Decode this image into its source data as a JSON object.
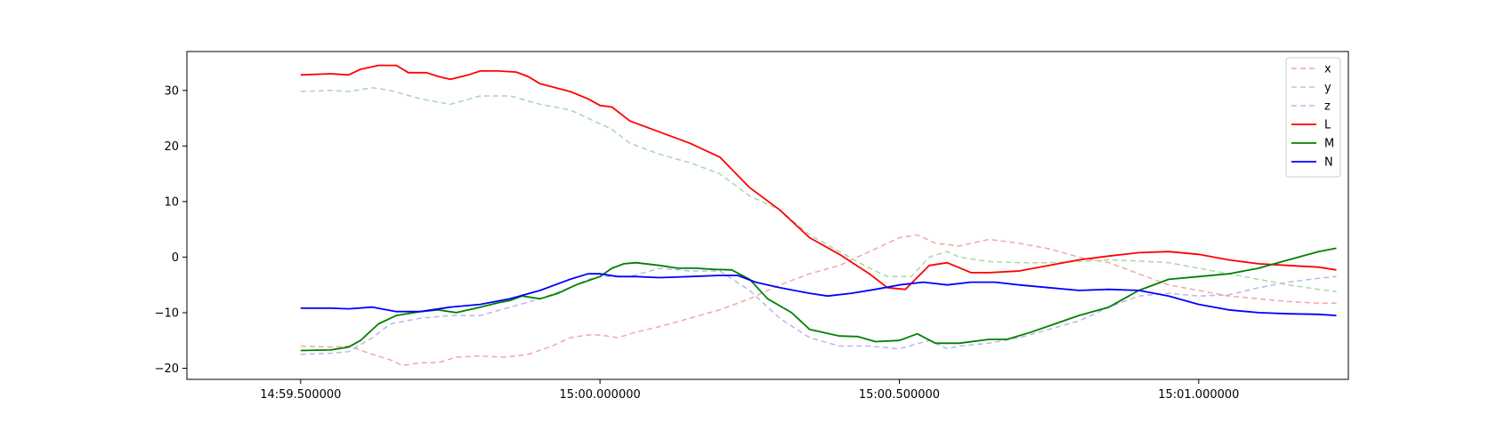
{
  "chart_data": {
    "type": "line",
    "title": "",
    "xlabel": "",
    "ylabel": "",
    "xlim": [
      -0.69,
      1.25
    ],
    "ylim": [
      -22,
      37
    ],
    "x_ticks": [
      {
        "value": -0.5,
        "label": "14:59.500000"
      },
      {
        "value": 0.0,
        "label": "15:00.000000"
      },
      {
        "value": 0.5,
        "label": "15:00.500000"
      },
      {
        "value": 1.0,
        "label": "15:01.000000"
      }
    ],
    "y_ticks": [
      {
        "value": -20,
        "label": "−20"
      },
      {
        "value": -10,
        "label": "−10"
      },
      {
        "value": 0,
        "label": "0"
      },
      {
        "value": 10,
        "label": "10"
      },
      {
        "value": 20,
        "label": "20"
      },
      {
        "value": 30,
        "label": "30"
      }
    ],
    "grid": false,
    "legend": {
      "position": "top-right"
    },
    "series": [
      {
        "name": "x",
        "color": "#f4a6a6",
        "dashed": true,
        "opacity": 0.6,
        "points": [
          [
            -0.5,
            -16
          ],
          [
            -0.45,
            -16.2
          ],
          [
            -0.42,
            -16
          ],
          [
            -0.38,
            -17.5
          ],
          [
            -0.35,
            -18.5
          ],
          [
            -0.33,
            -19.5
          ],
          [
            -0.3,
            -19
          ],
          [
            -0.27,
            -19
          ],
          [
            -0.24,
            -18
          ],
          [
            -0.2,
            -17.8
          ],
          [
            -0.16,
            -18
          ],
          [
            -0.12,
            -17.5
          ],
          [
            -0.08,
            -16
          ],
          [
            -0.05,
            -14.5
          ],
          [
            -0.02,
            -14
          ],
          [
            0.0,
            -14
          ],
          [
            0.03,
            -14.5
          ],
          [
            0.06,
            -13.5
          ],
          [
            0.1,
            -12.5
          ],
          [
            0.15,
            -11
          ],
          [
            0.2,
            -9.5
          ],
          [
            0.25,
            -7.5
          ],
          [
            0.3,
            -5
          ],
          [
            0.35,
            -3
          ],
          [
            0.4,
            -1.5
          ],
          [
            0.45,
            1
          ],
          [
            0.5,
            3.5
          ],
          [
            0.53,
            4
          ],
          [
            0.56,
            2.5
          ],
          [
            0.6,
            2
          ],
          [
            0.65,
            3.2
          ],
          [
            0.7,
            2.5
          ],
          [
            0.75,
            1.5
          ],
          [
            0.8,
            0
          ],
          [
            0.85,
            -1
          ],
          [
            0.9,
            -3
          ],
          [
            0.95,
            -5
          ],
          [
            1.0,
            -6
          ],
          [
            1.05,
            -7
          ],
          [
            1.1,
            -7.5
          ],
          [
            1.15,
            -8
          ],
          [
            1.2,
            -8.3
          ],
          [
            1.23,
            -8.3
          ]
        ]
      },
      {
        "name": "y",
        "color": "#a8d8a8",
        "dashed": true,
        "opacity": 0.6,
        "points": [
          [
            -0.5,
            29.8
          ],
          [
            -0.45,
            30
          ],
          [
            -0.42,
            29.8
          ],
          [
            -0.38,
            30.5
          ],
          [
            -0.35,
            30
          ],
          [
            -0.3,
            28.5
          ],
          [
            -0.25,
            27.5
          ],
          [
            -0.2,
            29
          ],
          [
            -0.15,
            29
          ],
          [
            -0.1,
            27.5
          ],
          [
            -0.05,
            26.5
          ],
          [
            0.0,
            24
          ],
          [
            0.02,
            23
          ],
          [
            0.05,
            20.5
          ],
          [
            0.1,
            18.5
          ],
          [
            0.15,
            17
          ],
          [
            0.2,
            15
          ],
          [
            0.25,
            11
          ],
          [
            0.3,
            8.5
          ],
          [
            0.35,
            4
          ],
          [
            0.4,
            1
          ],
          [
            0.45,
            -2
          ],
          [
            0.48,
            -3.5
          ],
          [
            0.52,
            -3.5
          ],
          [
            0.55,
            0
          ],
          [
            0.58,
            1
          ],
          [
            0.6,
            0
          ],
          [
            0.65,
            -0.8
          ],
          [
            0.7,
            -1
          ],
          [
            0.75,
            -1
          ],
          [
            0.8,
            -0.8
          ],
          [
            0.85,
            -0.5
          ],
          [
            0.9,
            -0.7
          ],
          [
            0.95,
            -1
          ],
          [
            1.0,
            -2
          ],
          [
            1.05,
            -3
          ],
          [
            1.1,
            -4
          ],
          [
            1.15,
            -5
          ],
          [
            1.2,
            -5.8
          ],
          [
            1.23,
            -6.2
          ]
        ]
      },
      {
        "name": "z",
        "color": "#b8b8ec",
        "dashed": true,
        "opacity": 0.6,
        "points": [
          [
            -0.5,
            -17.5
          ],
          [
            -0.45,
            -17.3
          ],
          [
            -0.42,
            -17
          ],
          [
            -0.38,
            -14.5
          ],
          [
            -0.35,
            -12
          ],
          [
            -0.3,
            -11
          ],
          [
            -0.25,
            -10.5
          ],
          [
            -0.2,
            -10.5
          ],
          [
            -0.15,
            -9
          ],
          [
            -0.1,
            -7.5
          ],
          [
            -0.05,
            -5.5
          ],
          [
            -0.02,
            -4
          ],
          [
            0.0,
            -3.5
          ],
          [
            0.05,
            -3.5
          ],
          [
            0.1,
            -2
          ],
          [
            0.15,
            -2.5
          ],
          [
            0.2,
            -2.5
          ],
          [
            0.25,
            -6
          ],
          [
            0.3,
            -11
          ],
          [
            0.35,
            -14.5
          ],
          [
            0.4,
            -16
          ],
          [
            0.45,
            -16
          ],
          [
            0.5,
            -16.5
          ],
          [
            0.55,
            -15
          ],
          [
            0.58,
            -16.5
          ],
          [
            0.6,
            -16
          ],
          [
            0.65,
            -15.5
          ],
          [
            0.7,
            -14.5
          ],
          [
            0.75,
            -13
          ],
          [
            0.8,
            -11.5
          ],
          [
            0.85,
            -9
          ],
          [
            0.9,
            -7
          ],
          [
            0.95,
            -6.5
          ],
          [
            1.0,
            -7
          ],
          [
            1.05,
            -6.8
          ],
          [
            1.1,
            -5.5
          ],
          [
            1.15,
            -4.5
          ],
          [
            1.2,
            -3.8
          ],
          [
            1.23,
            -3.5
          ]
        ]
      },
      {
        "name": "L",
        "color": "#ff0000",
        "dashed": false,
        "opacity": 1,
        "points": [
          [
            -0.5,
            32.8
          ],
          [
            -0.45,
            33
          ],
          [
            -0.42,
            32.8
          ],
          [
            -0.4,
            33.8
          ],
          [
            -0.37,
            34.5
          ],
          [
            -0.34,
            34.5
          ],
          [
            -0.32,
            33.2
          ],
          [
            -0.29,
            33.2
          ],
          [
            -0.27,
            32.5
          ],
          [
            -0.25,
            32
          ],
          [
            -0.22,
            32.8
          ],
          [
            -0.2,
            33.5
          ],
          [
            -0.17,
            33.5
          ],
          [
            -0.14,
            33.3
          ],
          [
            -0.12,
            32.5
          ],
          [
            -0.1,
            31.2
          ],
          [
            -0.05,
            29.8
          ],
          [
            -0.02,
            28.5
          ],
          [
            0.0,
            27.3
          ],
          [
            0.02,
            27
          ],
          [
            0.05,
            24.5
          ],
          [
            0.1,
            22.5
          ],
          [
            0.15,
            20.5
          ],
          [
            0.2,
            18
          ],
          [
            0.25,
            12.5
          ],
          [
            0.3,
            8.5
          ],
          [
            0.35,
            3.5
          ],
          [
            0.4,
            0.5
          ],
          [
            0.45,
            -3
          ],
          [
            0.48,
            -5.5
          ],
          [
            0.51,
            -5.8
          ],
          [
            0.55,
            -1.5
          ],
          [
            0.58,
            -1
          ],
          [
            0.62,
            -2.8
          ],
          [
            0.65,
            -2.8
          ],
          [
            0.7,
            -2.5
          ],
          [
            0.75,
            -1.5
          ],
          [
            0.8,
            -0.5
          ],
          [
            0.85,
            0.2
          ],
          [
            0.9,
            0.8
          ],
          [
            0.95,
            1
          ],
          [
            1.0,
            0.5
          ],
          [
            1.05,
            -0.5
          ],
          [
            1.1,
            -1.2
          ],
          [
            1.15,
            -1.5
          ],
          [
            1.2,
            -1.8
          ],
          [
            1.23,
            -2.3
          ]
        ]
      },
      {
        "name": "M",
        "color": "#008000",
        "dashed": false,
        "opacity": 1,
        "points": [
          [
            -0.5,
            -16.8
          ],
          [
            -0.45,
            -16.7
          ],
          [
            -0.42,
            -16.2
          ],
          [
            -0.4,
            -15
          ],
          [
            -0.37,
            -12
          ],
          [
            -0.34,
            -10.5
          ],
          [
            -0.3,
            -9.8
          ],
          [
            -0.27,
            -9.5
          ],
          [
            -0.24,
            -10
          ],
          [
            -0.2,
            -9
          ],
          [
            -0.17,
            -8.2
          ],
          [
            -0.15,
            -7.8
          ],
          [
            -0.13,
            -7
          ],
          [
            -0.1,
            -7.5
          ],
          [
            -0.07,
            -6.5
          ],
          [
            -0.04,
            -5
          ],
          [
            0.0,
            -3.5
          ],
          [
            0.02,
            -2
          ],
          [
            0.04,
            -1.2
          ],
          [
            0.06,
            -1
          ],
          [
            0.1,
            -1.5
          ],
          [
            0.13,
            -2
          ],
          [
            0.16,
            -2
          ],
          [
            0.19,
            -2.2
          ],
          [
            0.22,
            -2.3
          ],
          [
            0.25,
            -4
          ],
          [
            0.28,
            -7.5
          ],
          [
            0.32,
            -10
          ],
          [
            0.35,
            -13
          ],
          [
            0.4,
            -14.2
          ],
          [
            0.43,
            -14.3
          ],
          [
            0.46,
            -15.2
          ],
          [
            0.5,
            -15
          ],
          [
            0.53,
            -13.8
          ],
          [
            0.56,
            -15.5
          ],
          [
            0.6,
            -15.5
          ],
          [
            0.65,
            -14.8
          ],
          [
            0.68,
            -14.8
          ],
          [
            0.72,
            -13.5
          ],
          [
            0.76,
            -12
          ],
          [
            0.8,
            -10.5
          ],
          [
            0.85,
            -9
          ],
          [
            0.9,
            -6
          ],
          [
            0.95,
            -4
          ],
          [
            1.0,
            -3.5
          ],
          [
            1.05,
            -3
          ],
          [
            1.1,
            -2
          ],
          [
            1.15,
            -0.5
          ],
          [
            1.2,
            1
          ],
          [
            1.23,
            1.6
          ]
        ]
      },
      {
        "name": "N",
        "color": "#0000ff",
        "dashed": false,
        "opacity": 1,
        "points": [
          [
            -0.5,
            -9.2
          ],
          [
            -0.45,
            -9.2
          ],
          [
            -0.42,
            -9.3
          ],
          [
            -0.38,
            -9
          ],
          [
            -0.34,
            -9.8
          ],
          [
            -0.3,
            -9.8
          ],
          [
            -0.25,
            -9
          ],
          [
            -0.2,
            -8.5
          ],
          [
            -0.15,
            -7.5
          ],
          [
            -0.1,
            -6
          ],
          [
            -0.05,
            -4
          ],
          [
            -0.02,
            -3
          ],
          [
            0.0,
            -3
          ],
          [
            0.03,
            -3.5
          ],
          [
            0.06,
            -3.5
          ],
          [
            0.1,
            -3.7
          ],
          [
            0.15,
            -3.5
          ],
          [
            0.2,
            -3.3
          ],
          [
            0.23,
            -3.3
          ],
          [
            0.26,
            -4.5
          ],
          [
            0.3,
            -5.5
          ],
          [
            0.35,
            -6.5
          ],
          [
            0.38,
            -7
          ],
          [
            0.42,
            -6.5
          ],
          [
            0.46,
            -5.8
          ],
          [
            0.5,
            -5
          ],
          [
            0.54,
            -4.5
          ],
          [
            0.58,
            -5
          ],
          [
            0.62,
            -4.5
          ],
          [
            0.66,
            -4.5
          ],
          [
            0.7,
            -5
          ],
          [
            0.75,
            -5.5
          ],
          [
            0.8,
            -6
          ],
          [
            0.85,
            -5.8
          ],
          [
            0.9,
            -6
          ],
          [
            0.95,
            -7
          ],
          [
            1.0,
            -8.5
          ],
          [
            1.05,
            -9.5
          ],
          [
            1.1,
            -10
          ],
          [
            1.15,
            -10.2
          ],
          [
            1.2,
            -10.3
          ],
          [
            1.23,
            -10.5
          ]
        ]
      }
    ]
  }
}
